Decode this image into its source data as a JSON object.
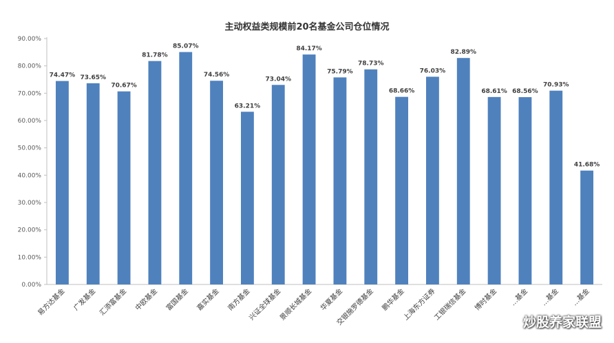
{
  "chart_data": {
    "type": "bar",
    "title": "主动权益类规模前20名基金公司仓位情况",
    "xlabel": "",
    "ylabel": "",
    "ylim": [
      0,
      90
    ],
    "y_ticks": [
      "0.00%",
      "10.00%",
      "20.00%",
      "30.00%",
      "40.00%",
      "50.00%",
      "60.00%",
      "70.00%",
      "80.00%",
      "90.00%"
    ],
    "categories": [
      "易方达基金",
      "广发基金",
      "汇添富基金",
      "中欧基金",
      "富国基金",
      "嘉实基金",
      "南方基金",
      "兴证全球基金",
      "景顺长城基金",
      "华夏基金",
      "交银施罗德基金",
      "鹏华基金",
      "上海东方证券",
      "工银瑞信基金",
      "博时基金",
      "…基金",
      "…基金",
      "…基金"
    ],
    "values": [
      74.47,
      73.65,
      70.67,
      81.78,
      85.07,
      74.56,
      63.21,
      73.04,
      84.17,
      75.79,
      78.73,
      68.66,
      76.03,
      82.89,
      68.61,
      68.56,
      70.93,
      41.68
    ],
    "value_labels": [
      "74.47%",
      "73.65%",
      "70.67%",
      "81.78%",
      "85.07%",
      "74.56%",
      "63.21%",
      "73.04%",
      "84.17%",
      "75.79%",
      "78.73%",
      "68.66%",
      "76.03%",
      "82.89%",
      "68.61%",
      "68.56%",
      "70.93%",
      "41.68%"
    ],
    "bar_color": "#4f81bd",
    "grid": false
  },
  "watermark": {
    "text": "炒股养家联盟",
    "icon": "wechat-icon"
  }
}
